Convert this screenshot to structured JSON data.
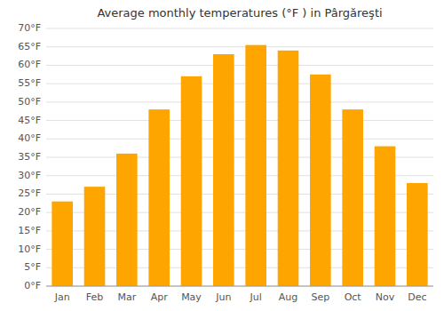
{
  "chart_data": {
    "type": "bar",
    "title": "Average monthly temperatures (°F ) in Pârgăreşti",
    "categories": [
      "Jan",
      "Feb",
      "Mar",
      "Apr",
      "May",
      "Jun",
      "Jul",
      "Aug",
      "Sep",
      "Oct",
      "Nov",
      "Dec"
    ],
    "values": [
      23,
      27,
      36,
      48,
      57,
      63,
      65.5,
      64,
      57.5,
      48,
      38,
      28
    ],
    "color": "#FFA500",
    "ylim": [
      0,
      70
    ],
    "yticks": [
      {
        "value": 0,
        "label": "0°F"
      },
      {
        "value": 5,
        "label": "5°F"
      },
      {
        "value": 10,
        "label": "10°F"
      },
      {
        "value": 15,
        "label": "15°F"
      },
      {
        "value": 20,
        "label": "20°F"
      },
      {
        "value": 25,
        "label": "25°F"
      },
      {
        "value": 30,
        "label": "30°F"
      },
      {
        "value": 35,
        "label": "35°F"
      },
      {
        "value": 40,
        "label": "40°F"
      },
      {
        "value": 45,
        "label": "45°F"
      },
      {
        "value": 50,
        "label": "50°F"
      },
      {
        "value": 55,
        "label": "55°F"
      },
      {
        "value": 60,
        "label": "60°F"
      },
      {
        "value": 65,
        "label": "65°F"
      },
      {
        "value": 70,
        "label": "70°F"
      }
    ],
    "grid": true
  }
}
